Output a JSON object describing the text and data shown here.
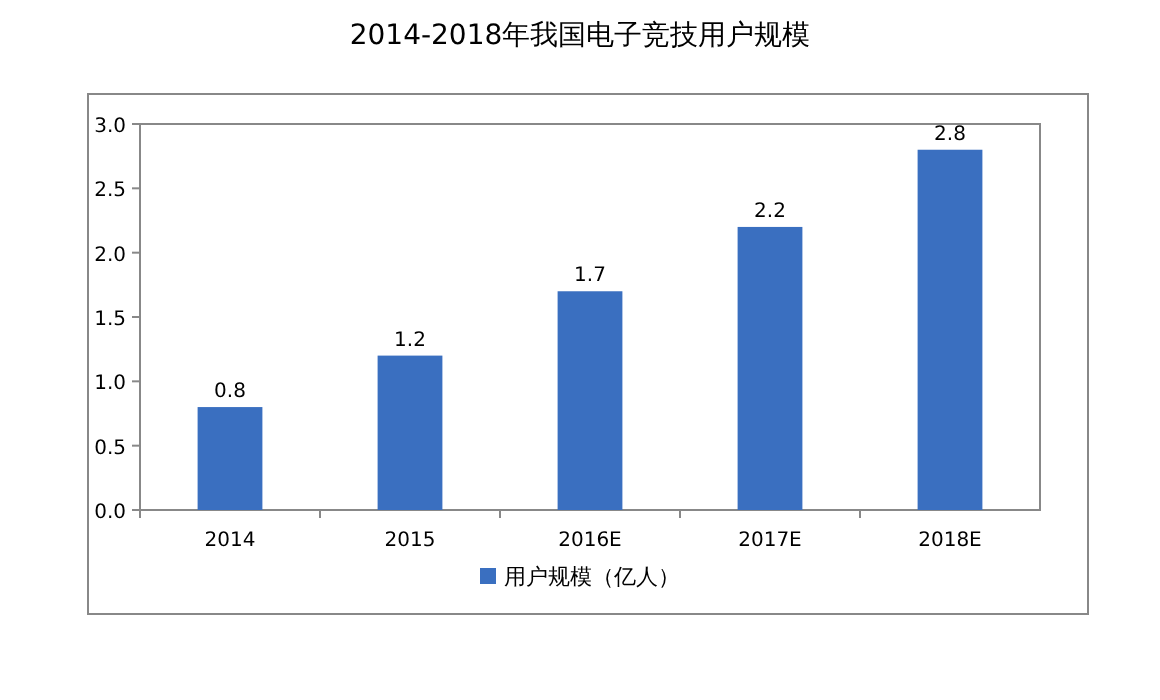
{
  "chart_data": {
    "type": "bar",
    "title": "2014-2018年我国电子竞技用户规模",
    "categories": [
      "2014",
      "2015",
      "2016E",
      "2017E",
      "2018E"
    ],
    "series": [
      {
        "name": "用户规模（亿人）",
        "color": "#3a6fc0",
        "values": [
          0.8,
          1.2,
          1.7,
          2.2,
          2.8
        ]
      }
    ],
    "ylim": [
      0,
      3
    ],
    "yticks": [
      {
        "value": 0,
        "label": "0.0"
      },
      {
        "value": 0.5,
        "label": "0.5"
      },
      {
        "value": 1,
        "label": "1.0"
      },
      {
        "value": 1.5,
        "label": "1.5"
      },
      {
        "value": 2,
        "label": "2.0"
      },
      {
        "value": 2.5,
        "label": "2.5"
      },
      {
        "value": 3,
        "label": "3.0"
      }
    ],
    "data_labels": true,
    "legend": "bottom"
  }
}
